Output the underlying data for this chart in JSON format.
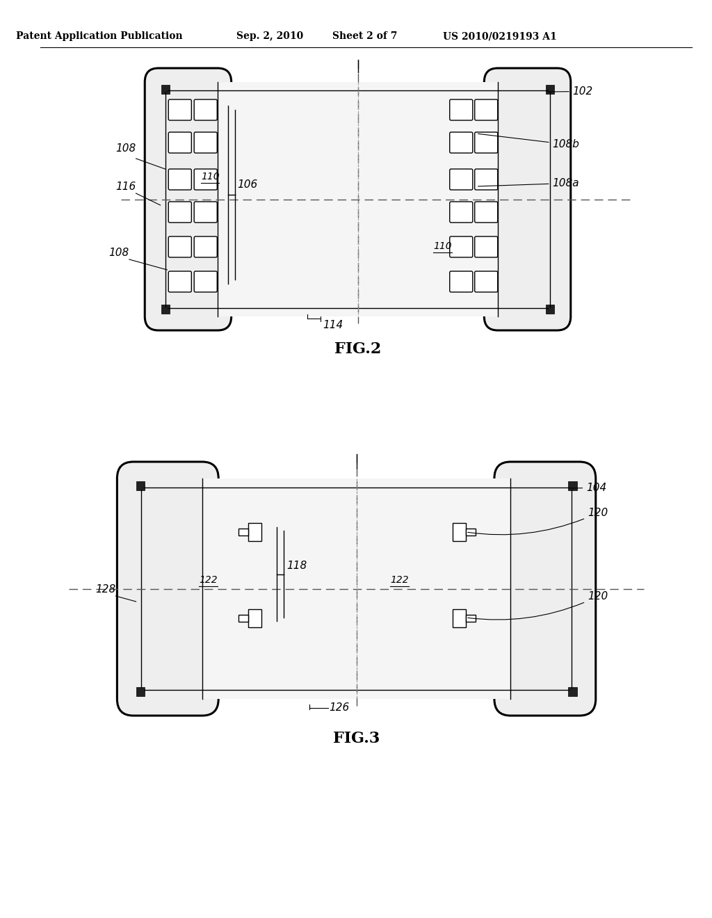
{
  "bg_color": "#ffffff",
  "line_color": "#000000",
  "header_text": "Patent Application Publication",
  "header_date": "Sep. 2, 2010",
  "header_sheet": "Sheet 2 of 7",
  "header_patent": "US 2010/0219193 A1",
  "fig2_label": "FIG.2",
  "fig3_label": "FIG.3"
}
